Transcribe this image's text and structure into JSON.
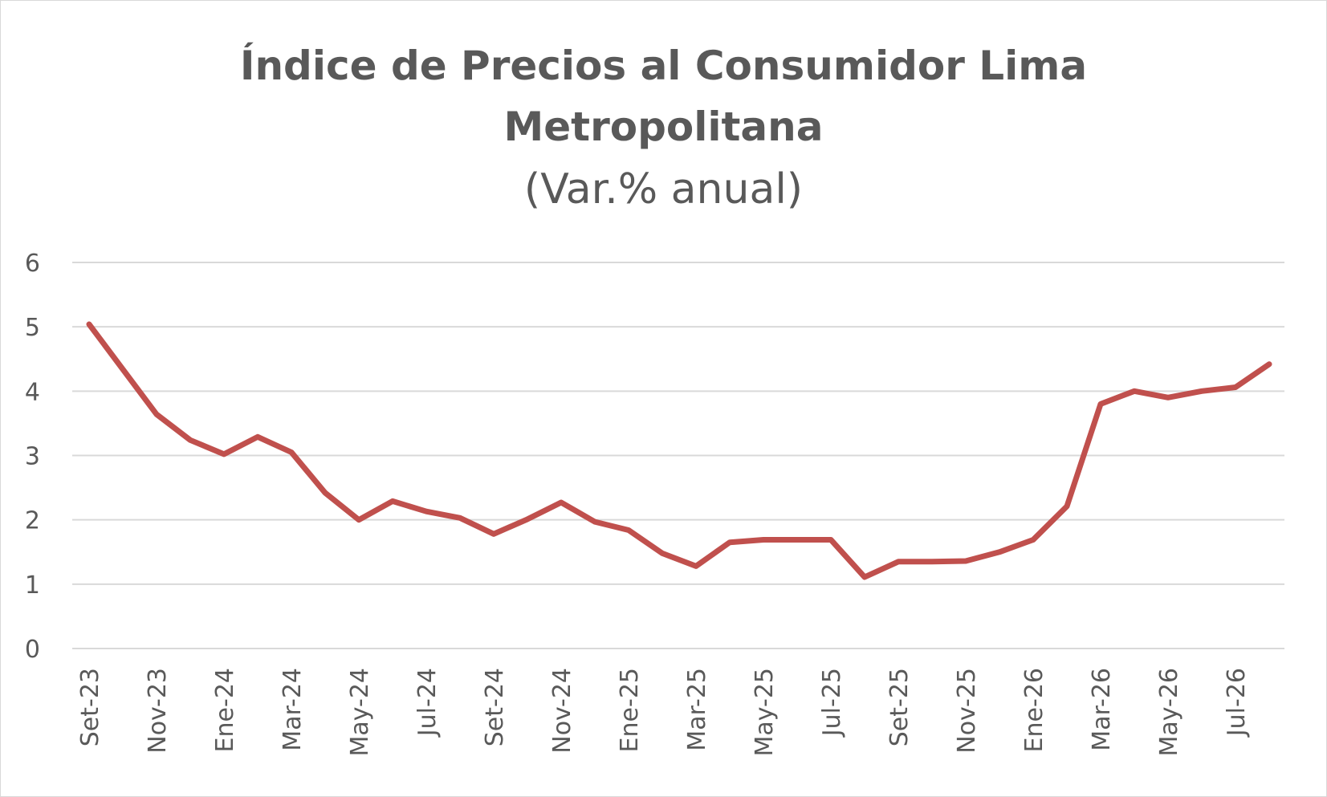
{
  "chart_data": {
    "type": "line",
    "title_line1": "Índice de Precios al Consumidor Lima",
    "title_line2": "Metropolitana",
    "subtitle": "(Var.% anual)",
    "xlabel": "",
    "ylabel": "",
    "ylim": [
      0,
      6
    ],
    "yticks": [
      "0",
      "1",
      "2",
      "3",
      "4",
      "5",
      "6"
    ],
    "grid": true,
    "legend": "none",
    "x_tick_labels": [
      "Set-23",
      "Nov-23",
      "Ene-24",
      "Mar-24",
      "May-24",
      "Jul-24",
      "Set-24",
      "Nov-24",
      "Ene-25",
      "Mar-25",
      "May-25",
      "Jul-25",
      "Set-25",
      "Nov-25",
      "Ene-26",
      "Mar-26",
      "May-26",
      "Jul-26"
    ],
    "series": [
      {
        "color": "#c0504d",
        "x": [
          "Set-23",
          "Oct-23",
          "Nov-23",
          "Dic-23",
          "Ene-24",
          "Feb-24",
          "Mar-24",
          "Abr-24",
          "May-24",
          "Jun-24",
          "Jul-24",
          "Ago-24",
          "Set-24",
          "Oct-24",
          "Nov-24",
          "Dic-24",
          "Ene-25",
          "Feb-25",
          "Mar-25",
          "Abr-25",
          "May-25",
          "Jun-25",
          "Jul-25",
          "Ago-25",
          "Set-25",
          "Oct-25",
          "Nov-25",
          "Dic-25",
          "Ene-26",
          "Feb-26",
          "Mar-26",
          "Abr-26",
          "May-26",
          "Jun-26",
          "Jul-26",
          "Ago-26"
        ],
        "values": [
          5.04,
          4.34,
          3.64,
          3.24,
          3.02,
          3.29,
          3.05,
          2.42,
          2.0,
          2.29,
          2.13,
          2.03,
          1.78,
          2.01,
          2.27,
          1.97,
          1.84,
          1.48,
          1.28,
          1.65,
          1.69,
          1.69,
          1.69,
          1.11,
          1.35,
          1.35,
          1.36,
          1.5,
          1.69,
          2.21,
          3.8,
          4.0,
          3.9,
          4.0,
          4.06,
          4.42
        ]
      }
    ]
  }
}
